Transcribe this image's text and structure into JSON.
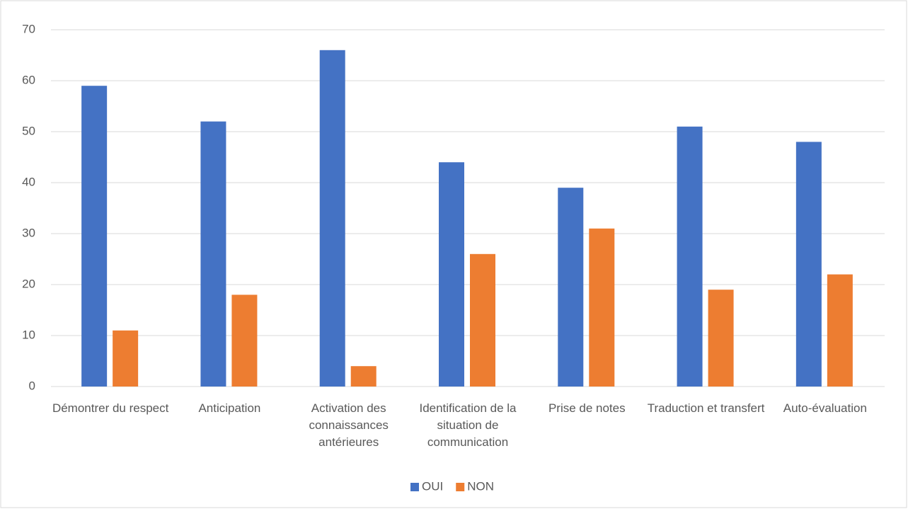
{
  "chart_data": {
    "type": "bar",
    "categories": [
      "Démontrer du respect",
      "Anticipation",
      "Activation des connaissances antérieures",
      "Identification de la situation de communication",
      "Prise de notes",
      "Traduction et transfert",
      "Auto-évaluation"
    ],
    "series": [
      {
        "name": "OUI",
        "color": "#4472c4",
        "values": [
          59,
          52,
          66,
          44,
          39,
          51,
          48
        ]
      },
      {
        "name": "NON",
        "color": "#ed7d31",
        "values": [
          11,
          18,
          4,
          26,
          31,
          19,
          22
        ]
      }
    ],
    "ylim": [
      0,
      70
    ],
    "yticks": [
      0,
      10,
      20,
      30,
      40,
      50,
      60,
      70
    ],
    "grid": true,
    "legend": "bottom"
  }
}
